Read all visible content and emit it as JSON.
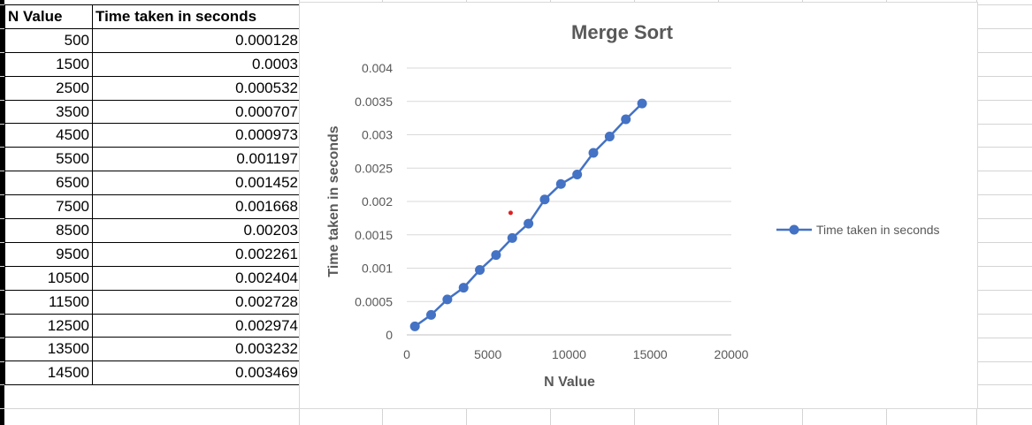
{
  "table": {
    "headers": [
      "N Value",
      "Time taken in seconds"
    ],
    "rows": [
      [
        "500",
        "0.000128"
      ],
      [
        "1500",
        "0.0003"
      ],
      [
        "2500",
        "0.000532"
      ],
      [
        "3500",
        "0.000707"
      ],
      [
        "4500",
        "0.000973"
      ],
      [
        "5500",
        "0.001197"
      ],
      [
        "6500",
        "0.001452"
      ],
      [
        "7500",
        "0.001668"
      ],
      [
        "8500",
        "0.00203"
      ],
      [
        "9500",
        "0.002261"
      ],
      [
        "10500",
        "0.002404"
      ],
      [
        "11500",
        "0.002728"
      ],
      [
        "12500",
        "0.002974"
      ],
      [
        "13500",
        "0.003232"
      ],
      [
        "14500",
        "0.003469"
      ]
    ]
  },
  "chart_data": {
    "type": "line",
    "title": "Merge Sort",
    "xlabel": "N Value",
    "ylabel": "Time taken in seconds",
    "xlim": [
      0,
      20000
    ],
    "ylim": [
      0,
      0.004
    ],
    "x_ticks": [
      "0",
      "5000",
      "10000",
      "15000",
      "20000"
    ],
    "y_ticks": [
      "0",
      "0.0005",
      "0.001",
      "0.0015",
      "0.002",
      "0.0025",
      "0.003",
      "0.0035",
      "0.004"
    ],
    "grid": true,
    "legend_position": "right",
    "series": [
      {
        "name": "Time taken in seconds",
        "color": "#4472c4",
        "x": [
          500,
          1500,
          2500,
          3500,
          4500,
          5500,
          6500,
          7500,
          8500,
          9500,
          10500,
          11500,
          12500,
          13500,
          14500
        ],
        "y": [
          0.000128,
          0.0003,
          0.000532,
          0.000707,
          0.000973,
          0.001197,
          0.001452,
          0.001668,
          0.00203,
          0.002261,
          0.002404,
          0.002728,
          0.002974,
          0.003232,
          0.003469
        ]
      }
    ],
    "annotations": [
      {
        "type": "marker",
        "x": 6400,
        "y": 0.00183,
        "color": "#e02020"
      }
    ]
  }
}
